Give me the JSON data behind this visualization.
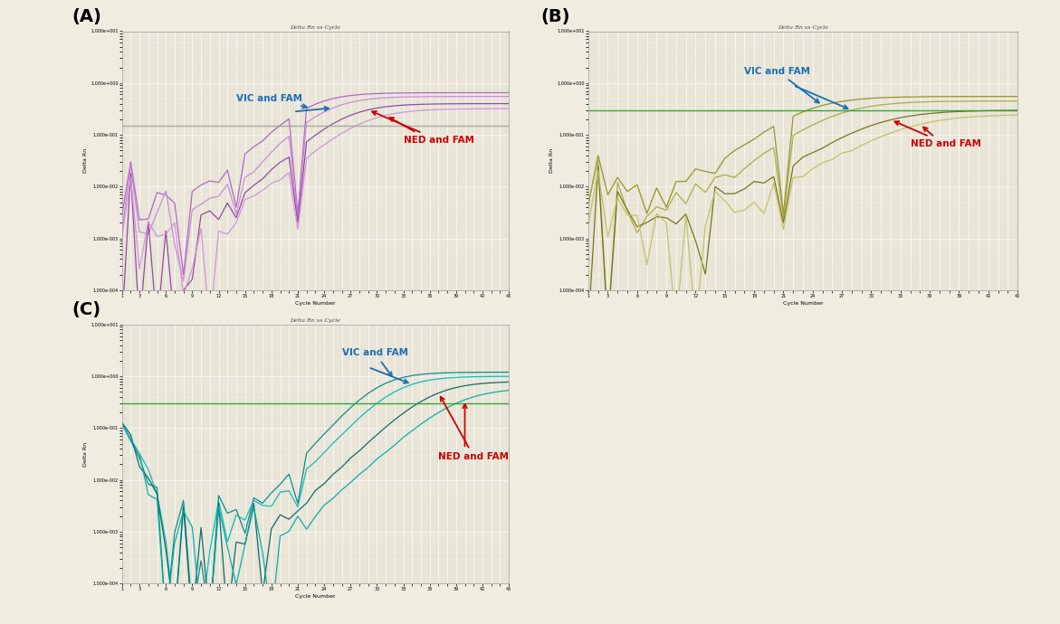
{
  "bg_color": "#f0ece0",
  "plot_bg": "#e8e4d6",
  "title": "Delta Rn vs Cycle",
  "xlabel": "Cycle Number",
  "panel_labels": [
    "(A)",
    "(B)",
    "(C)"
  ],
  "colors_A": [
    "#b060c0",
    "#c888d8",
    "#9040a0",
    "#d090e0"
  ],
  "colors_B": [
    "#909020",
    "#aaaa40",
    "#707010",
    "#c0c060"
  ],
  "colors_C": [
    "#008888",
    "#00bbbb",
    "#006666",
    "#00aaaa"
  ],
  "thresh_color_A": "#a0a0a0",
  "thresh_color_B": "#20a020",
  "thresh_color_C": "#20a020",
  "vic_fam_color": "#1a6eb5",
  "ned_fam_color": "#cc0000",
  "grid_color": "#ffffff",
  "spine_color": "#999999"
}
